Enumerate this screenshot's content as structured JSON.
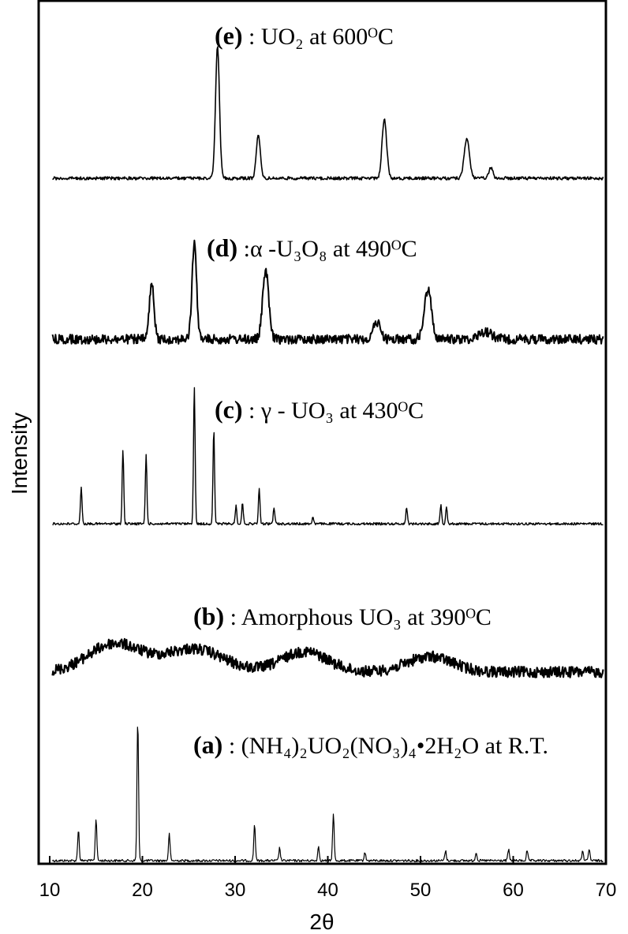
{
  "chart_data": {
    "type": "line",
    "xlabel": "2θ",
    "ylabel": "Intensity",
    "xlim": [
      10,
      70
    ],
    "xticks": [
      "10",
      "20",
      "30",
      "40",
      "50",
      "60",
      "70"
    ],
    "series": [
      {
        "id": "a",
        "tag": "(a)",
        "label": ": (NH₄)₂UO₂(NO₃)₄•2H₂O at R.T.",
        "peaks": [
          {
            "x": 13.1,
            "h": 0.22
          },
          {
            "x": 15.0,
            "h": 0.3
          },
          {
            "x": 19.5,
            "h": 1.0
          },
          {
            "x": 22.9,
            "h": 0.19
          },
          {
            "x": 32.1,
            "h": 0.26
          },
          {
            "x": 34.8,
            "h": 0.09
          },
          {
            "x": 39.0,
            "h": 0.1
          },
          {
            "x": 40.6,
            "h": 0.33
          },
          {
            "x": 44.0,
            "h": 0.06
          },
          {
            "x": 52.7,
            "h": 0.07
          },
          {
            "x": 56.0,
            "h": 0.06
          },
          {
            "x": 59.5,
            "h": 0.08
          },
          {
            "x": 61.5,
            "h": 0.07
          },
          {
            "x": 67.5,
            "h": 0.07
          },
          {
            "x": 68.2,
            "h": 0.08
          }
        ]
      },
      {
        "id": "b",
        "tag": "(b)",
        "label": ": Amorphous UO₃ at 390ᴼC",
        "humps": [
          {
            "x": 17.0,
            "h": 0.55,
            "w": 4.0
          },
          {
            "x": 25.5,
            "h": 0.45,
            "w": 4.5
          },
          {
            "x": 37.5,
            "h": 0.4,
            "w": 3.5
          },
          {
            "x": 51.0,
            "h": 0.3,
            "w": 3.5
          }
        ]
      },
      {
        "id": "c",
        "tag": "(c)",
        "label": ": γ - UO₃ at 430ᴼC",
        "peaks": [
          {
            "x": 13.4,
            "h": 0.27
          },
          {
            "x": 17.9,
            "h": 0.53
          },
          {
            "x": 20.4,
            "h": 0.5
          },
          {
            "x": 25.6,
            "h": 1.0
          },
          {
            "x": 27.7,
            "h": 0.68
          },
          {
            "x": 30.1,
            "h": 0.13
          },
          {
            "x": 30.8,
            "h": 0.15
          },
          {
            "x": 32.6,
            "h": 0.25
          },
          {
            "x": 34.2,
            "h": 0.12
          },
          {
            "x": 38.4,
            "h": 0.05
          },
          {
            "x": 48.5,
            "h": 0.12
          },
          {
            "x": 52.2,
            "h": 0.14
          },
          {
            "x": 52.8,
            "h": 0.13
          }
        ]
      },
      {
        "id": "d",
        "tag": "(d)",
        "label": ":α -U₃O₈ at 490ᴼC",
        "peaks": [
          {
            "x": 21.0,
            "h": 0.58,
            "w": 0.35
          },
          {
            "x": 25.6,
            "h": 1.0,
            "w": 0.35
          },
          {
            "x": 33.3,
            "h": 0.73,
            "w": 0.45
          },
          {
            "x": 45.3,
            "h": 0.18,
            "w": 0.55
          },
          {
            "x": 50.8,
            "h": 0.52,
            "w": 0.55
          },
          {
            "x": 57.0,
            "h": 0.08,
            "w": 1.0
          }
        ]
      },
      {
        "id": "e",
        "tag": "(e)",
        "label": ": UO₂ at 600ᴼC",
        "peaks": [
          {
            "x": 28.1,
            "h": 1.0,
            "w": 0.3
          },
          {
            "x": 32.5,
            "h": 0.34,
            "w": 0.3
          },
          {
            "x": 46.1,
            "h": 0.45,
            "w": 0.35
          },
          {
            "x": 55.0,
            "h": 0.3,
            "w": 0.4
          },
          {
            "x": 57.6,
            "h": 0.08,
            "w": 0.3
          }
        ]
      }
    ]
  }
}
